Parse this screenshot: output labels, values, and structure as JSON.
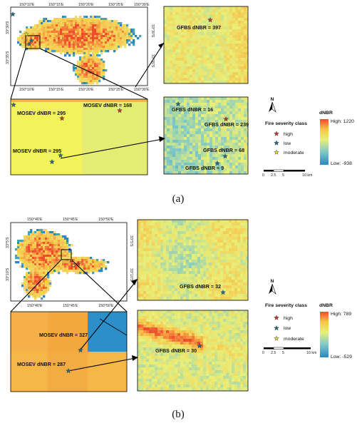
{
  "colors": {
    "high": "#c0392b",
    "low": "#1f6f8b",
    "moderate": "#e6d43a",
    "ramp": [
      "#2e86c1",
      "#7ec8c8",
      "#e9ef78",
      "#f7c34b",
      "#ef4b2e"
    ],
    "mosev_yellow": "#f3f25a",
    "mosev_orange": "#f7b648",
    "mosev_blue": "#2d8fc7"
  },
  "panel_a": {
    "caption": "(a)",
    "top_ticks": [
      "150°10'E",
      "150°15'E",
      "150°20'E",
      "150°25'E",
      "150°30'E"
    ],
    "bottom_ticks": [
      "150°10'E",
      "150°15'E",
      "150°20'E",
      "150°25'E",
      "150°30'E"
    ],
    "left_ticks": [
      "33°30'S",
      "33°35'S"
    ],
    "right_ticks": [
      "33°30'S",
      "33°35'S"
    ],
    "labels": {
      "gfbs_top": "GFBS dNBR = 397",
      "mosev_1": "MOSEV dNBR = 295",
      "mosev_2": "MOSEV dNBR = 168",
      "mosev_3": "MOSEV dNBR = 295",
      "gfbs_16": "GFBS dNBR = 16",
      "gfbs_239": "GFBS dNBR = 239",
      "gfbs_68": "GFBS dNBR = 68",
      "gfbs_9": "GFBS dNBR = 9"
    },
    "legend": {
      "north": "N",
      "class_title": "Fire severity class",
      "classes": [
        "high",
        "low",
        "moderate"
      ],
      "dnbr_title": "dNBR",
      "high_label": "High: 1220",
      "low_label": "Low: -938",
      "scale_ticks": [
        "0",
        "2.5",
        "5",
        "10 km"
      ]
    }
  },
  "panel_b": {
    "caption": "(b)",
    "top_ticks": [
      "150°40'E",
      "150°45'E",
      "150°50'E"
    ],
    "bottom_ticks": [
      "150°40'E",
      "150°45'E",
      "150°50'E"
    ],
    "left_ticks": [
      "33°5'S",
      "33°10'S"
    ],
    "right_ticks": [
      "33°5'S",
      "33°10'S"
    ],
    "labels": {
      "gfbs_32": "GFBS dNBR = 32",
      "mosev_327": "MOSEV dNBR = 327",
      "mosev_287": "MOSEV dNBR = 287",
      "gfbs_30": "GFBS dNBR = 30"
    },
    "legend": {
      "north": "N",
      "class_title": "Fire severity class",
      "classes": [
        "high",
        "low",
        "moderate"
      ],
      "dnbr_title": "dNBR",
      "high_label": "High: 789",
      "low_label": "Low: -529",
      "scale_ticks": [
        "0",
        "2.5",
        "5",
        "10 km"
      ]
    }
  }
}
